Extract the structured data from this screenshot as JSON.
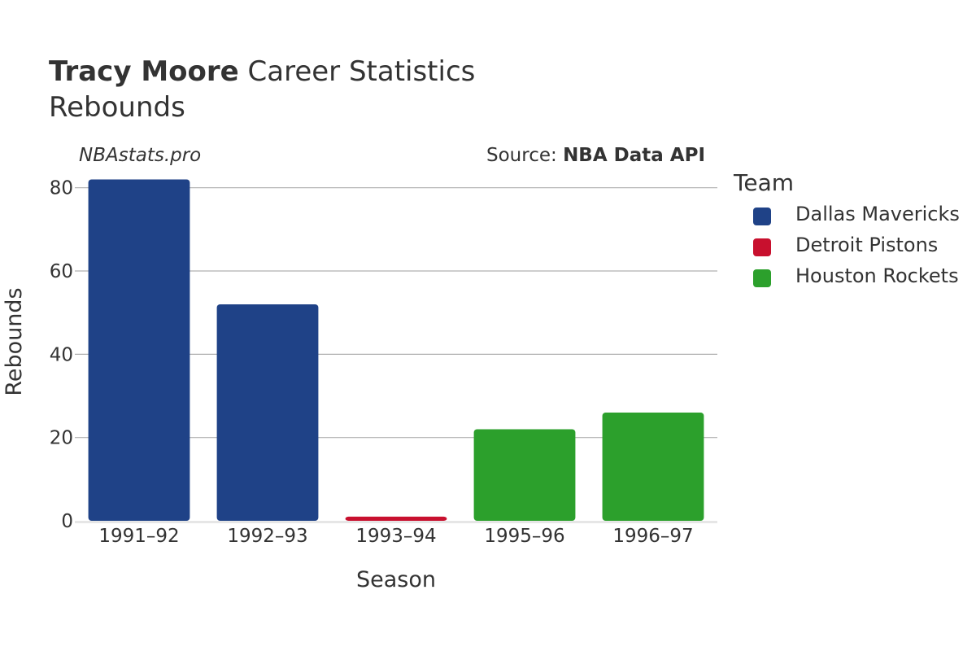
{
  "header": {
    "title_name": "Tracy Moore",
    "title_rest": "Career Statistics",
    "subtitle": "Rebounds"
  },
  "credits": {
    "left": "NBAstats.pro",
    "source_prefix": "Source:",
    "source_name": "NBA Data API"
  },
  "legend": {
    "title": "Team",
    "items": [
      {
        "label": "Dallas Mavericks",
        "color": "#1f4287"
      },
      {
        "label": "Detroit Pistons",
        "color": "#c8102e"
      },
      {
        "label": "Houston Rockets",
        "color": "#2ca02c"
      }
    ]
  },
  "chart_data": {
    "type": "bar",
    "categories": [
      "1991–92",
      "1992–93",
      "1993–94",
      "1995–96",
      "1996–97"
    ],
    "values": [
      82,
      52,
      1,
      22,
      26
    ],
    "teams": [
      "Dallas Mavericks",
      "Dallas Mavericks",
      "Detroit Pistons",
      "Houston Rockets",
      "Houston Rockets"
    ],
    "colors": [
      "#1f4287",
      "#1f4287",
      "#c8102e",
      "#2ca02c",
      "#2ca02c"
    ],
    "xlabel": "Season",
    "ylabel": "Rebounds",
    "ylim": [
      0,
      86
    ],
    "yticks": [
      0,
      20,
      40,
      60,
      80
    ],
    "grid": true,
    "legend_position": "right"
  }
}
